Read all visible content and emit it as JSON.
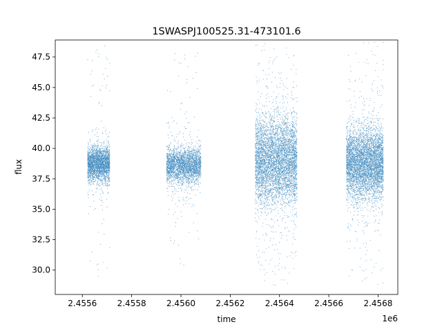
{
  "chart_data": {
    "type": "scatter",
    "title": "1SWASPJ100525.31-473101.6",
    "xlabel": "time",
    "ylabel": "flux",
    "x_offset_label": "1e6",
    "xlim": [
      2.45549,
      2.45688
    ],
    "ylim": [
      28.0,
      48.9
    ],
    "x_ticks": [
      2.4556,
      2.4558,
      2.456,
      2.4562,
      2.4564,
      2.4566,
      2.4568
    ],
    "x_tick_labels": [
      "2.4556",
      "2.4558",
      "2.4560",
      "2.4562",
      "2.4564",
      "2.4566",
      "2.4568"
    ],
    "y_ticks": [
      30.0,
      32.5,
      35.0,
      37.5,
      40.0,
      42.5,
      45.0,
      47.5
    ],
    "y_tick_labels": [
      "30.0",
      "32.5",
      "35.0",
      "37.5",
      "40.0",
      "42.5",
      "45.0",
      "47.5"
    ],
    "grid": false,
    "marker_color": "#1f77b4",
    "series": [
      {
        "segments": [
          {
            "x_start": 2.45562,
            "x_end": 2.45571,
            "median": 38.6,
            "band_low": 37.2,
            "band_high": 40.3,
            "scatter_low": 29.0,
            "scatter_high": 48.5
          },
          {
            "x_start": 2.45594,
            "x_end": 2.45608,
            "median": 38.5,
            "band_low": 37.0,
            "band_high": 40.2,
            "scatter_low": 29.5,
            "scatter_high": 47.9
          },
          {
            "x_start": 2.4563,
            "x_end": 2.45647,
            "median": 38.5,
            "band_low": 35.0,
            "band_high": 43.0,
            "scatter_low": 28.7,
            "scatter_high": 48.8
          },
          {
            "x_start": 2.45667,
            "x_end": 2.45682,
            "median": 38.5,
            "band_low": 35.5,
            "band_high": 42.0,
            "scatter_low": 28.7,
            "scatter_high": 48.8
          }
        ]
      }
    ]
  }
}
